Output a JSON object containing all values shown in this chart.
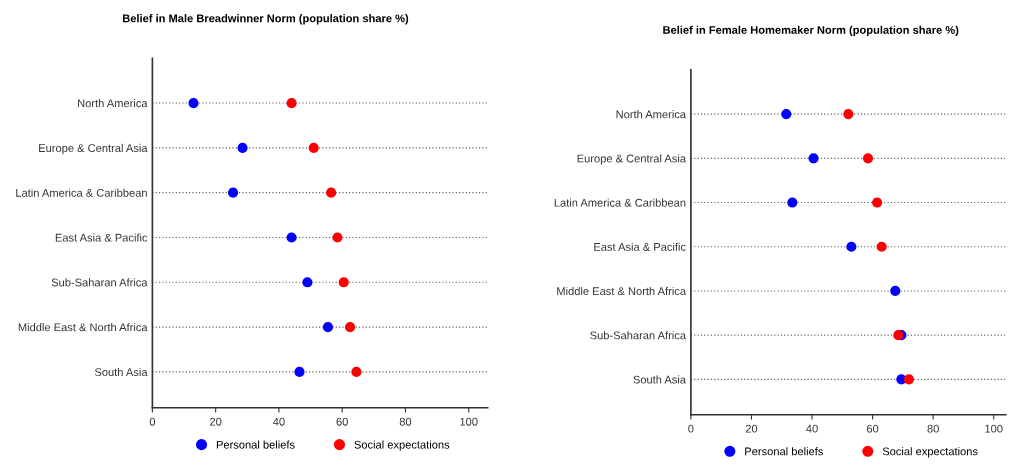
{
  "chart_data": [
    {
      "type": "scatter",
      "title": "Belief in Male Breadwinner Norm (population share %)",
      "categories": [
        "North America",
        "Europe & Central Asia",
        "Latin America & Caribbean",
        "East Asia & Pacific",
        "Sub-Saharan Africa",
        "Middle East & North Africa",
        "South Asia"
      ],
      "series": [
        {
          "name": "Personal beliefs",
          "color": "#0000ff",
          "values": [
            13,
            28.5,
            25.5,
            44,
            49,
            55.5,
            46.5
          ]
        },
        {
          "name": "Social expectations",
          "color": "#ff0000",
          "values": [
            44,
            51,
            56.5,
            58.5,
            60.5,
            62.5,
            64.5
          ]
        }
      ],
      "orientation": "horizontal",
      "xlim": [
        0,
        106
      ],
      "xticks": [
        0,
        20,
        40,
        60,
        80,
        100
      ],
      "grid": "y",
      "legend": "bottom",
      "marker": "circle"
    },
    {
      "type": "scatter",
      "title": "Belief in Female Homemaker Norm (population share %)",
      "categories": [
        "North America",
        "Europe & Central Asia",
        "Latin America & Caribbean",
        "East Asia & Pacific",
        "Middle East & North Africa",
        "Sub-Saharan Africa",
        "South Asia"
      ],
      "series": [
        {
          "name": "Personal beliefs",
          "color": "#0000ff",
          "values": [
            31.5,
            40.5,
            33.5,
            53,
            67.5,
            69.5,
            69.5
          ]
        },
        {
          "name": "Social expectations",
          "color": "#ff0000",
          "values": [
            52,
            58.5,
            61.5,
            63,
            null,
            68.5,
            72
          ]
        }
      ],
      "orientation": "horizontal",
      "xlim": [
        0,
        104
      ],
      "xticks": [
        0,
        20,
        40,
        60,
        80,
        100
      ],
      "grid": "y",
      "legend": "bottom",
      "marker": "circle"
    }
  ]
}
